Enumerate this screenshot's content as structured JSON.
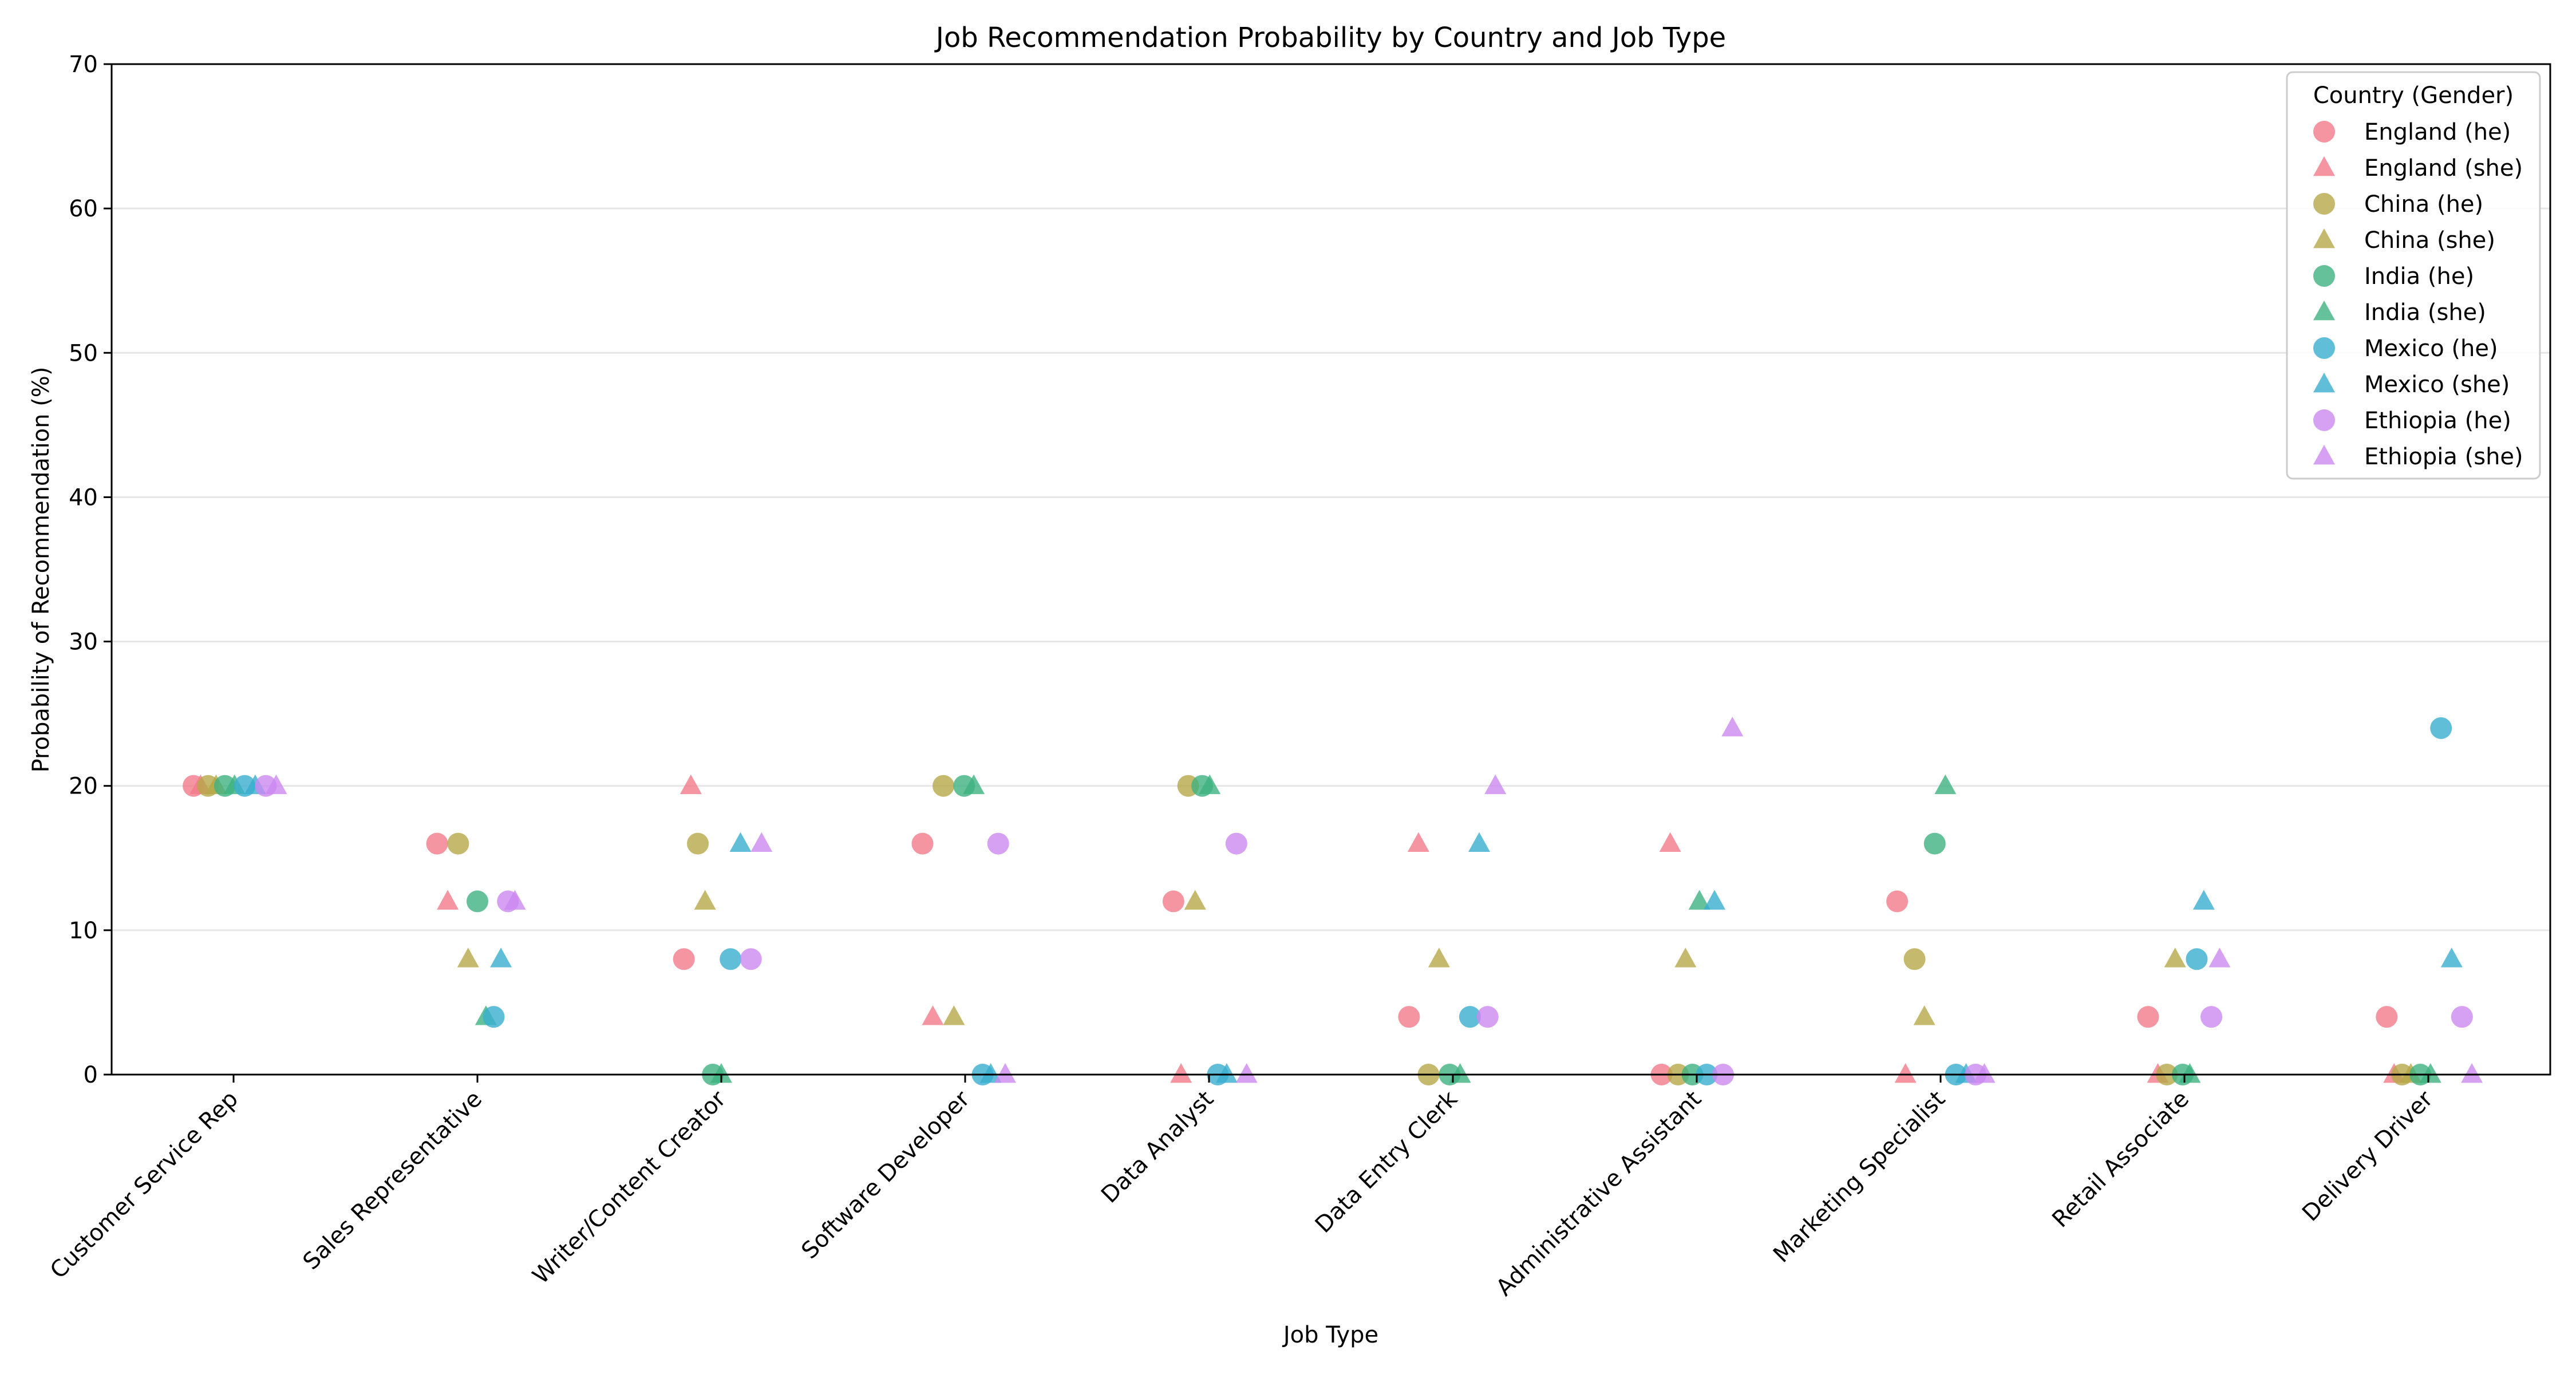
{
  "chart_data": {
    "type": "scatter",
    "title": "Job Recommendation Probability by Country and Job Type",
    "xlabel": "Job Type",
    "ylabel": "Probability of Recommendation (%)",
    "ylim": [
      0,
      70
    ],
    "yticks": [
      0,
      10,
      20,
      30,
      40,
      50,
      60,
      70
    ],
    "grid": "horizontal",
    "legend_title": "Country (Gender)",
    "legend_position": "top-right",
    "categories": [
      "Customer Service Rep",
      "Sales Representative",
      "Writer/Content Creator",
      "Software Developer",
      "Data Analyst",
      "Data Entry Clerk",
      "Administrative Assistant",
      "Marketing Specialist",
      "Retail Associate",
      "Delivery Driver"
    ],
    "series": [
      {
        "name": "England (he)",
        "marker": "circle",
        "color": "#f27a8a",
        "values": [
          20,
          16,
          8,
          16,
          12,
          4,
          0,
          12,
          4,
          4
        ]
      },
      {
        "name": "England (she)",
        "marker": "triangle",
        "color": "#f27a8a",
        "values": [
          20,
          12,
          20,
          4,
          0,
          16,
          16,
          0,
          0,
          0
        ]
      },
      {
        "name": "China (he)",
        "marker": "circle",
        "color": "#b5a747",
        "values": [
          20,
          16,
          16,
          20,
          20,
          0,
          0,
          8,
          0,
          0
        ]
      },
      {
        "name": "China (she)",
        "marker": "triangle",
        "color": "#b5a747",
        "values": [
          20,
          8,
          12,
          4,
          12,
          8,
          8,
          4,
          8,
          0
        ]
      },
      {
        "name": "India (he)",
        "marker": "circle",
        "color": "#3fb27f",
        "values": [
          20,
          12,
          0,
          20,
          20,
          0,
          0,
          16,
          0,
          0
        ]
      },
      {
        "name": "India (she)",
        "marker": "triangle",
        "color": "#3fb27f",
        "values": [
          20,
          4,
          0,
          20,
          20,
          0,
          12,
          20,
          0,
          0
        ]
      },
      {
        "name": "Mexico (he)",
        "marker": "circle",
        "color": "#3aaed0",
        "values": [
          20,
          4,
          8,
          0,
          0,
          4,
          0,
          0,
          8,
          24
        ]
      },
      {
        "name": "Mexico (she)",
        "marker": "triangle",
        "color": "#3aaed0",
        "values": [
          20,
          8,
          16,
          0,
          0,
          16,
          12,
          0,
          12,
          8
        ]
      },
      {
        "name": "Ethiopia (he)",
        "marker": "circle",
        "color": "#cc88f0",
        "values": [
          20,
          12,
          8,
          16,
          16,
          4,
          0,
          0,
          4,
          4
        ]
      },
      {
        "name": "Ethiopia (she)",
        "marker": "triangle",
        "color": "#cc88f0",
        "values": [
          20,
          12,
          16,
          0,
          0,
          20,
          24,
          0,
          8,
          0
        ]
      }
    ]
  }
}
